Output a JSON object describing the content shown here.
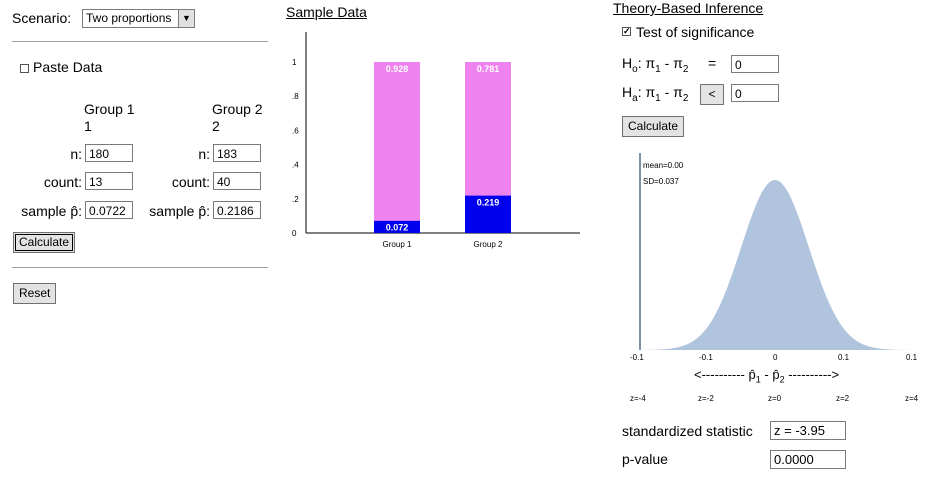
{
  "scenario": {
    "label": "Scenario:",
    "value": "Two proportions"
  },
  "paste": {
    "label": "Paste Data",
    "checked": false
  },
  "groups": {
    "g1_header": "Group 1",
    "g1_sub": "1",
    "g2_header": "Group 2",
    "g2_sub": "2",
    "n_label": "n:",
    "count_label": "count:",
    "phat_label": "sample p̂:",
    "g1_n": "180",
    "g2_n": "183",
    "g1_count": "13",
    "g2_count": "40",
    "g1_phat": "0.0722",
    "g2_phat": "0.2186"
  },
  "buttons": {
    "calculate": "Calculate",
    "reset": "Reset",
    "calculate2": "Calculate",
    "less_than": "<"
  },
  "sample_data": {
    "title": "Sample Data",
    "chart_data": {
      "type": "bar",
      "stacked": true,
      "categories": [
        "Group 1",
        "Group 2"
      ],
      "series": [
        {
          "values": [
            0.072,
            0.219
          ],
          "color": "#0000ee"
        },
        {
          "values": [
            0.928,
            0.781
          ],
          "color": "#ee82ee"
        }
      ],
      "data_labels": [
        [
          "0.072",
          "0.928"
        ],
        [
          "0.219",
          "0.781"
        ]
      ],
      "ylim": [
        0,
        1
      ],
      "yticks": [
        "0",
        ".2",
        ".4",
        ".6",
        ".8",
        "1"
      ]
    }
  },
  "inference": {
    "title": "Theory-Based Inference",
    "test_label": "Test of significance",
    "test_checked": true,
    "h0_label": "H",
    "h0_sub": "o",
    "ha_label": "H",
    "ha_sub": "a",
    "pi_expr": ": π",
    "pi_sub1": "1",
    "minus": " - π",
    "pi_sub2": "2",
    "equals": "=",
    "h0_value": "0",
    "ha_value": "0",
    "stat_label": "standardized statistic",
    "stat_value": "z = -3.95",
    "pvalue_label": "p-value",
    "pvalue_value": "0.0000"
  },
  "null_dist": {
    "chart_data": {
      "type": "area",
      "mean": 0.0,
      "sd": 0.037,
      "mean_text": "mean=0.00",
      "sd_text": "SD=0.037",
      "xticks": [
        "-0.1",
        "-0.1",
        "0",
        "0.1",
        "0.1"
      ],
      "zticks": [
        "z=-4",
        "z=-2",
        "z=0",
        "z=2",
        "z=4"
      ],
      "xlabel_left": "<----------",
      "xlabel_p1": "p̂",
      "xlabel_sub1": "1",
      "xlabel_mid": " - ",
      "xlabel_p2": "p̂",
      "xlabel_sub2": "2",
      "xlabel_right": "---------->",
      "fill": "#b0c4de"
    }
  }
}
